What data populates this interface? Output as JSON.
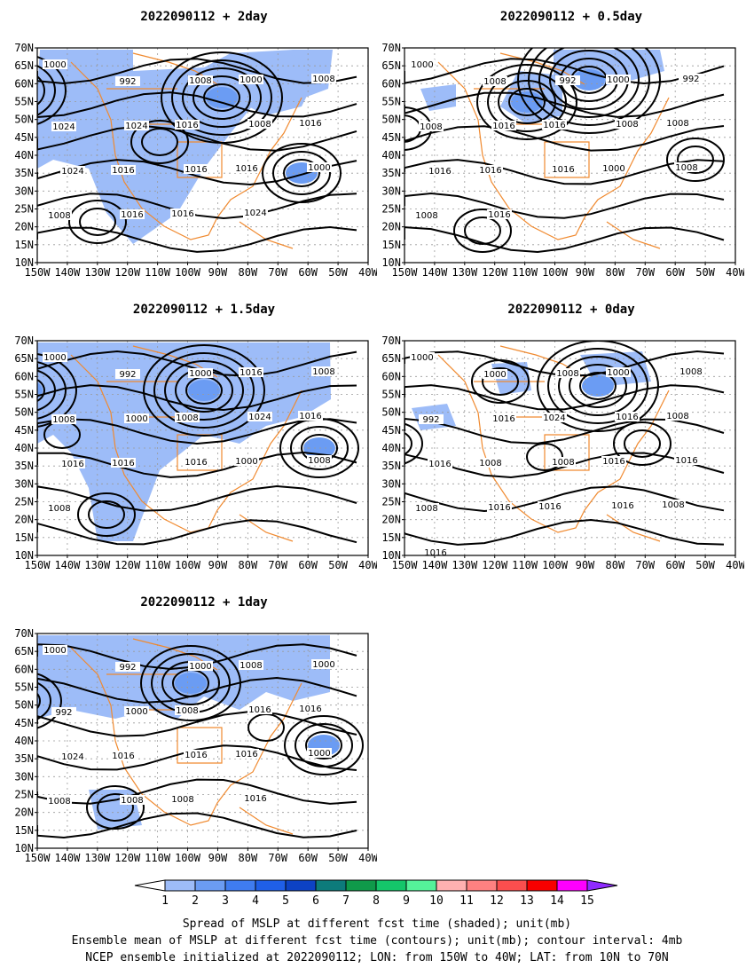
{
  "panels": [
    {
      "id": "p2day",
      "title": "2022090112  +  2day",
      "contour_labels": [
        "1000",
        "992",
        "1008",
        "1000",
        "1008",
        "1024",
        "1024",
        "1016",
        "1008",
        "1016",
        "1024",
        "1016",
        "1016",
        "1016",
        "1000",
        "1008",
        "1016",
        "1016",
        "1024"
      ]
    },
    {
      "id": "p05day",
      "title": "2022090112  +  0.5day",
      "contour_labels": [
        "1000",
        "1008",
        "992",
        "1000",
        "992",
        "1008",
        "1016",
        "1016",
        "1008",
        "1008",
        "1016",
        "1016",
        "1016",
        "1000",
        "1008",
        "1008",
        "1016"
      ]
    },
    {
      "id": "p15day",
      "title": "2022090112  +  1.5day",
      "contour_labels": [
        "1000",
        "992",
        "1000",
        "1016",
        "1008",
        "1008",
        "1000",
        "1008",
        "1024",
        "1016",
        "1016",
        "1016",
        "1016",
        "1000",
        "1008",
        "1008"
      ]
    },
    {
      "id": "p0day",
      "title": "2022090112  +  0day",
      "contour_labels": [
        "1000",
        "1000",
        "1008",
        "1000",
        "1008",
        "992",
        "1016",
        "1024",
        "1016",
        "1008",
        "1016",
        "1008",
        "1008",
        "1016",
        "1016",
        "1008",
        "1016",
        "1016",
        "1016",
        "1008",
        "1016"
      ]
    },
    {
      "id": "p1day",
      "title": "2022090112  +  1day",
      "contour_labels": [
        "1000",
        "992",
        "1000",
        "1008",
        "1000",
        "992",
        "1000",
        "1008",
        "1016",
        "1016",
        "1024",
        "1016",
        "1016",
        "1016",
        "1000",
        "1008",
        "1008",
        "1008",
        "1016"
      ]
    }
  ],
  "axes": {
    "lat_ticks": [
      "70N",
      "65N",
      "60N",
      "55N",
      "50N",
      "45N",
      "40N",
      "35N",
      "30N",
      "25N",
      "20N",
      "15N",
      "10N"
    ],
    "lon_ticks": [
      "150W",
      "140W",
      "130W",
      "120W",
      "110W",
      "100W",
      "90W",
      "80W",
      "70W",
      "60W",
      "50W",
      "40W"
    ]
  },
  "colorbar": {
    "labels": [
      "1",
      "2",
      "3",
      "4",
      "5",
      "6",
      "7",
      "8",
      "9",
      "10",
      "11",
      "12",
      "13",
      "14",
      "15"
    ],
    "colors": [
      "#ffffff",
      "#9dbcf8",
      "#6b9cf3",
      "#3f7cf0",
      "#1f5fe8",
      "#0d42c4",
      "#0d7b7b",
      "#0f9a4a",
      "#14c66a",
      "#55f29a",
      "#ffb1b1",
      "#ff8181",
      "#fb4e4e",
      "#f80000",
      "#ff00ff",
      "#8f2bff"
    ]
  },
  "caption": {
    "line1": "Spread of MSLP at different fcst time (shaded); unit(mb)",
    "line2": "Ensemble mean of MSLP at different fcst time (contours); unit(mb); contour interval: 4mb",
    "line3": "NCEP ensemble initialized at 2022090112; LON: from 150W to 40W; LAT: from 10N to 70N"
  }
}
